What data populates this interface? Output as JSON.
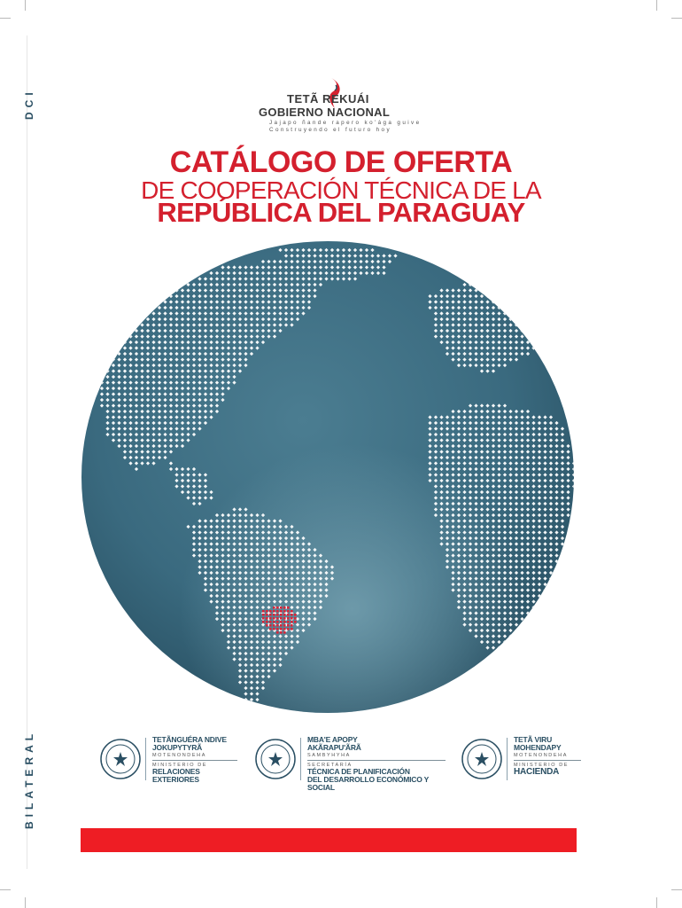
{
  "side_labels": {
    "top": "DCI",
    "bottom": "BILATERAL"
  },
  "logo": {
    "line1": "TETÃ REKUÁI",
    "line2": "GOBIERNO NACIONAL",
    "tagline1": "Jajapo ñande rapero ko'ága guive",
    "tagline2": "Construyendo el futuro hoy"
  },
  "title": {
    "line1": "CATÁLOGO DE OFERTA",
    "line2": "DE COOPERACIÓN TÉCNICA DE LA",
    "line3": "REPÚBLICA DEL PARAGUAY"
  },
  "institutions": [
    {
      "guarani1": "TETÃNGUÉRA NDIVE",
      "guarani2": "JOKUPYTYRÃ",
      "sub1": "MOTENONDEHA",
      "sub2": "MINISTERIO DE",
      "name1": "RELACIONES",
      "name2": "EXTERIORES"
    },
    {
      "guarani1": "MBA'E APOPY",
      "guarani2": "AKÃRAPU'ÃRÃ",
      "sub1": "SAMBYHYHA",
      "sub2": "SECRETARÍA",
      "name1": "TÉCNICA DE PLANIFICACIÓN",
      "name2": "DEL DESARROLLO ECONÓMICO Y SOCIAL"
    },
    {
      "guarani1": "TETÃ VIRU",
      "guarani2": "MOHENDAPY",
      "sub1": "MOTENONDEHA",
      "sub2": "MINISTERIO DE",
      "name1": "HACIENDA",
      "name2": ""
    }
  ],
  "colors": {
    "accent": "#ee1d24",
    "title": "#d4202e",
    "globe": "#3b6a80",
    "highlight": "#d9263a"
  }
}
